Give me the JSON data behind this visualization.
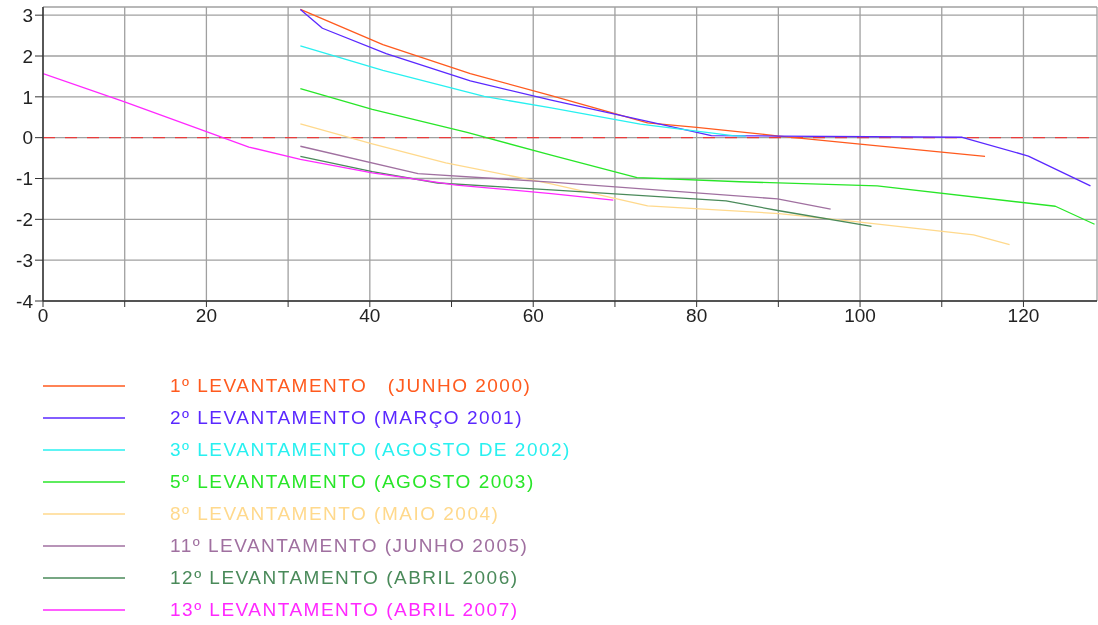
{
  "chart_data": {
    "type": "line",
    "xlim": [
      0,
      129
    ],
    "ylim": [
      -4,
      3.2
    ],
    "xticks": [
      0,
      {
        "value": 10,
        "label": null
      },
      20,
      {
        "value": 30,
        "label": null
      },
      40,
      {
        "value": 50,
        "label": null
      },
      60,
      {
        "value": 70,
        "label": null
      },
      80,
      {
        "value": 90,
        "label": null
      },
      100,
      {
        "value": 110,
        "label": null
      },
      120
    ],
    "yticks": [
      -4,
      -3,
      -2,
      -1,
      0,
      1,
      2,
      3
    ],
    "grid": true,
    "legend": "bottom left",
    "ref_lines": [
      {
        "axis": "y",
        "value": 0,
        "color": "#e83c3c",
        "line_style": "dashed"
      }
    ],
    "series": [
      {
        "name": "1º LEVANTAMENTO   (JUNHO 2000)",
        "color": "#ff5a1e",
        "x": [
          31.5,
          41.6,
          52.3,
          62.2,
          74,
          80,
          90.1,
          100,
          115.3
        ],
        "values": [
          3.14,
          2.28,
          1.57,
          1.03,
          0.36,
          0.25,
          0.04,
          -0.16,
          -0.46
        ]
      },
      {
        "name": "2º LEVANTAMENTO (MARÇO 2001)",
        "color": "#5a28ff",
        "x": [
          31.5,
          34.2,
          42,
          52.3,
          62.2,
          74,
          81.8,
          90,
          112.5,
          120.6,
          128.2
        ],
        "values": [
          3.14,
          2.68,
          2.06,
          1.39,
          0.92,
          0.4,
          0.05,
          0.04,
          0.01,
          -0.45,
          -1.18
        ]
      },
      {
        "name": "3º LEVANTAMENTO (AGOSTO DE 2002)",
        "color": "#28f0f0",
        "x": [
          31.5,
          41.6,
          54,
          62.2,
          73.1,
          80,
          84.4,
          86
        ],
        "values": [
          2.25,
          1.65,
          1.01,
          0.73,
          0.33,
          0.16,
          0.05,
          0.04
        ]
      },
      {
        "name": "5º LEVANTAMENTO (AGOSTO 2003)",
        "color": "#28e628",
        "x": [
          31.5,
          40.3,
          51.9,
          62.2,
          72.7,
          85.3,
          102.1,
          123.9,
          128.7
        ],
        "values": [
          1.2,
          0.69,
          0.13,
          -0.43,
          -0.98,
          -1.08,
          -1.18,
          -1.68,
          -2.12
        ]
      },
      {
        "name": "8º LEVANTAMENTO (MAIO 2004)",
        "color": "#ffd98c",
        "x": [
          31.5,
          40.3,
          49.3,
          62.2,
          74,
          90.1,
          100,
          113.9,
          118.3
        ],
        "values": [
          0.34,
          -0.15,
          -0.62,
          -1.13,
          -1.67,
          -1.86,
          -2.07,
          -2.38,
          -2.62
        ]
      },
      {
        "name": "11º LEVANTAMENTO (JUNHO 2005)",
        "color": "#a070a0",
        "x": [
          31.5,
          45.9,
          62.2,
          89.9,
          96.4
        ],
        "values": [
          -0.21,
          -0.88,
          -1.09,
          -1.5,
          -1.75
        ]
      },
      {
        "name": "12º LEVANTAMENTO (ABRIL 2006)",
        "color": "#4a8a5a",
        "x": [
          31.5,
          40.3,
          48.3,
          62.2,
          83.6,
          90.1,
          101.4
        ],
        "values": [
          -0.46,
          -0.83,
          -1.11,
          -1.28,
          -1.55,
          -1.79,
          -2.17
        ]
      },
      {
        "name": "13º LEVANTAMENTO (ABRIL 2007)",
        "color": "#ff28ff",
        "x": [
          0,
          9.9,
          20,
          25.2,
          31.5,
          40.3,
          50.6,
          62.2,
          69.8
        ],
        "values": [
          1.57,
          0.88,
          0.15,
          -0.23,
          -0.53,
          -0.86,
          -1.16,
          -1.37,
          -1.53
        ]
      }
    ]
  }
}
